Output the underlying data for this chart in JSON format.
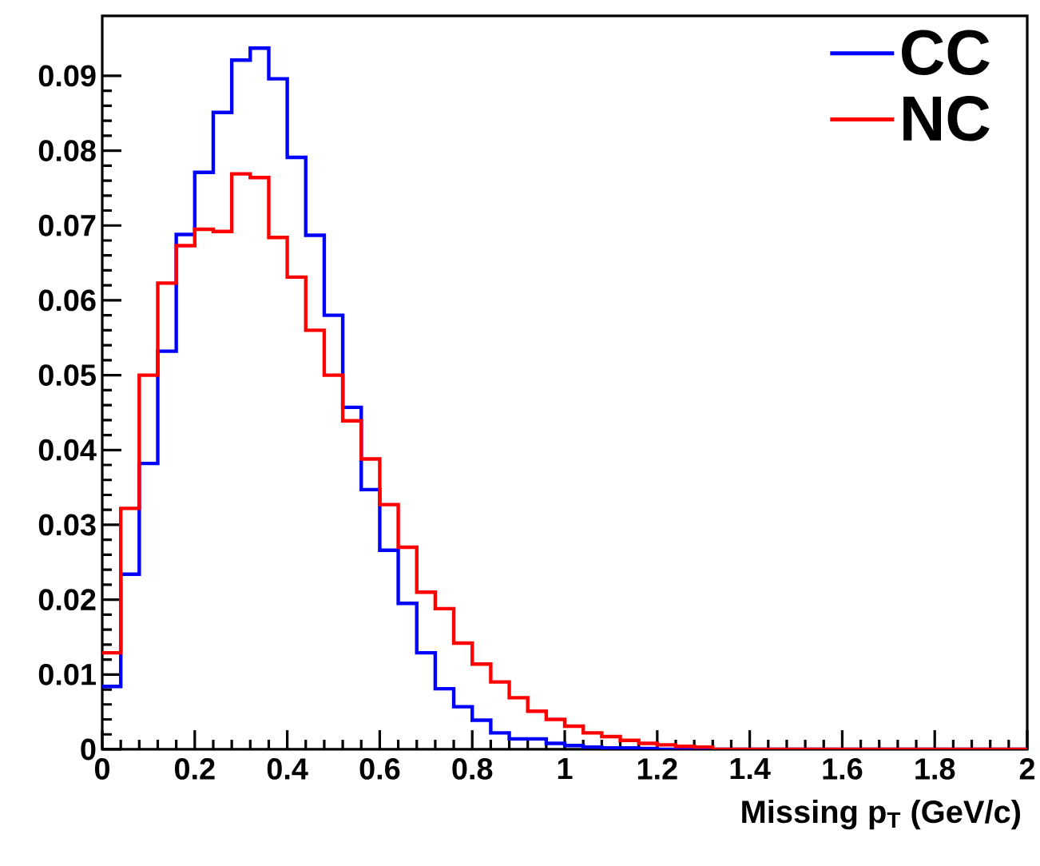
{
  "chart_data": {
    "type": "histogram",
    "xlabel": "Missing p$_{T}$ (GeV/c)",
    "bins": [
      0,
      0.04,
      0.08,
      0.12,
      0.16,
      0.2,
      0.24,
      0.28,
      0.32,
      0.36,
      0.4,
      0.44,
      0.48,
      0.52,
      0.56,
      0.6,
      0.64,
      0.68,
      0.72,
      0.76,
      0.8,
      0.84,
      0.88,
      0.92,
      0.96,
      1.0,
      1.04,
      1.08,
      1.12,
      1.16,
      1.2,
      1.24,
      1.28,
      1.32,
      1.36,
      1.4,
      1.44,
      1.48,
      1.52,
      1.56,
      1.6,
      1.64,
      1.68,
      1.72,
      1.76,
      1.8,
      1.84,
      1.88,
      1.92,
      1.96,
      2.0
    ],
    "series": [
      {
        "name": "CC",
        "color": "#0000ff",
        "values": [
          0.0084,
          0.0234,
          0.0382,
          0.0532,
          0.0688,
          0.0771,
          0.0851,
          0.0921,
          0.0937,
          0.0896,
          0.0791,
          0.0687,
          0.058,
          0.0457,
          0.0347,
          0.0266,
          0.0195,
          0.0129,
          0.0081,
          0.0057,
          0.0039,
          0.0022,
          0.0014,
          0.0014,
          0.0008,
          0.0005,
          0.0003,
          0.0002,
          0.0002,
          0.0001,
          0,
          0,
          0,
          0,
          0,
          0,
          0,
          0,
          0,
          0,
          0,
          0,
          0,
          0,
          0,
          0,
          0,
          0,
          0,
          0
        ]
      },
      {
        "name": "NC",
        "color": "#ff0000",
        "values": [
          0.0129,
          0.0322,
          0.05,
          0.0623,
          0.0673,
          0.0695,
          0.0692,
          0.0769,
          0.0764,
          0.0684,
          0.0631,
          0.056,
          0.05,
          0.0439,
          0.0388,
          0.0327,
          0.027,
          0.021,
          0.0188,
          0.0142,
          0.0114,
          0.009,
          0.0069,
          0.0051,
          0.004,
          0.0031,
          0.0022,
          0.0017,
          0.0012,
          0.0008,
          0.0006,
          0.0004,
          0.0003,
          0,
          0,
          0,
          0,
          0,
          0,
          0,
          0,
          0,
          0,
          0,
          0,
          0,
          0,
          0,
          0,
          0
        ]
      }
    ],
    "xlim": [
      0,
      2
    ],
    "ylim": [
      0,
      0.098
    ],
    "xticks": [
      0,
      0.2,
      0.4,
      0.6,
      0.8,
      1,
      1.2,
      1.4,
      1.6,
      1.8,
      2
    ],
    "yticks": [
      0,
      0.01,
      0.02,
      0.03,
      0.04,
      0.05,
      0.06,
      0.07,
      0.08,
      0.09
    ],
    "legend": "top right",
    "grid": false
  }
}
